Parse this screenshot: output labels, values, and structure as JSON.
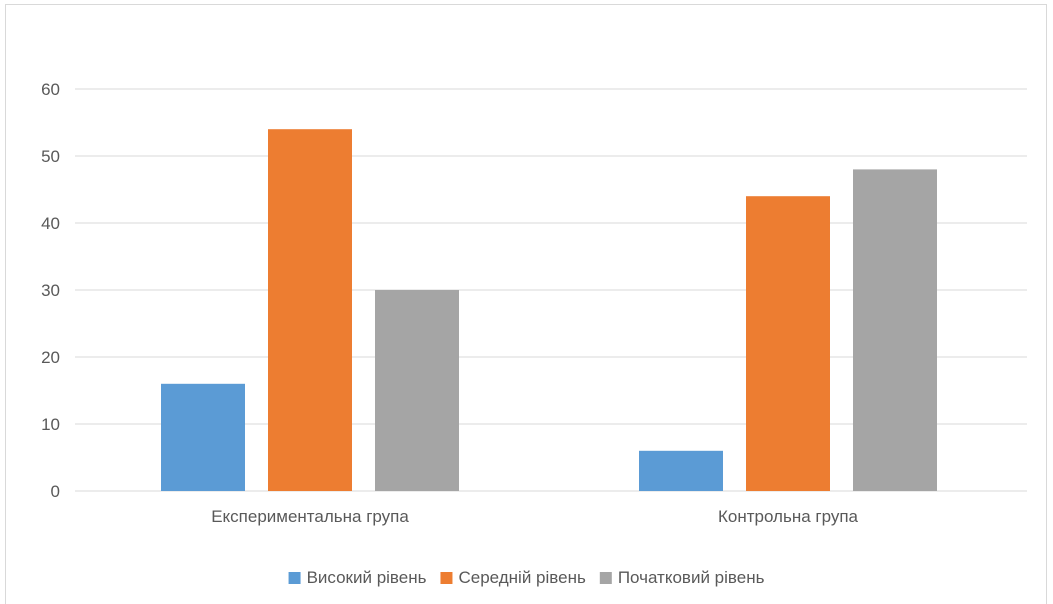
{
  "chart_data": {
    "type": "bar",
    "title": "",
    "xlabel": "",
    "ylabel": "",
    "ylim": [
      0,
      60
    ],
    "yticks": [
      0,
      10,
      20,
      30,
      40,
      50,
      60
    ],
    "grid": true,
    "legend_position": "bottom",
    "categories": [
      "Експериментальна група",
      "Контрольна група"
    ],
    "series": [
      {
        "name": "Високий рівень",
        "values": [
          16,
          6
        ],
        "color": "#5b9bd5"
      },
      {
        "name": "Середній рівень",
        "values": [
          54,
          44
        ],
        "color": "#ed7d31"
      },
      {
        "name": "Початковий рівень",
        "values": [
          30,
          48
        ],
        "color": "#a5a5a5"
      }
    ]
  }
}
